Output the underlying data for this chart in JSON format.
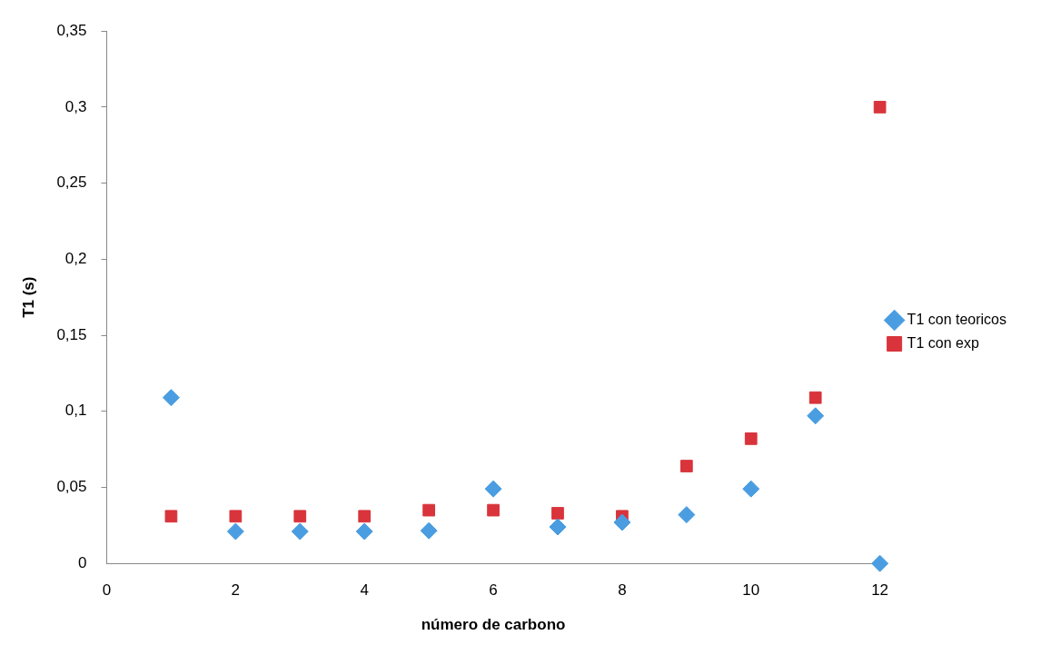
{
  "chart_data": {
    "type": "scatter",
    "xlabel": "número de carbono",
    "ylabel": "T1 (s)",
    "x": [
      1,
      2,
      3,
      4,
      5,
      6,
      7,
      8,
      9,
      10,
      11,
      12
    ],
    "series": [
      {
        "name": "T1 con teoricos",
        "color": "#4a9de0",
        "marker": "diamond",
        "values": [
          0.109,
          0.021,
          0.021,
          0.021,
          0.0215,
          0.049,
          0.024,
          0.027,
          0.032,
          0.049,
          0.097,
          0
        ]
      },
      {
        "name": "T1 con exp",
        "color": "#d9343c",
        "marker": "square",
        "values": [
          0.031,
          0.031,
          0.031,
          0.031,
          0.035,
          0.035,
          0.033,
          0.031,
          0.064,
          0.082,
          0.109,
          0.3
        ]
      }
    ],
    "xlim": [
      0,
      12
    ],
    "xticks": [
      0,
      2,
      4,
      6,
      8,
      10,
      12
    ],
    "ylim": [
      0,
      0.35
    ],
    "yticks": [
      {
        "value": 0,
        "label": "0"
      },
      {
        "value": 0.05,
        "label": "0,05"
      },
      {
        "value": 0.1,
        "label": "0,1"
      },
      {
        "value": 0.15,
        "label": "0,15"
      },
      {
        "value": 0.2,
        "label": "0,2"
      },
      {
        "value": 0.25,
        "label": "0,25"
      },
      {
        "value": 0.3,
        "label": "0,3"
      },
      {
        "value": 0.35,
        "label": "0,35"
      }
    ],
    "grid": false,
    "legend": "right"
  }
}
